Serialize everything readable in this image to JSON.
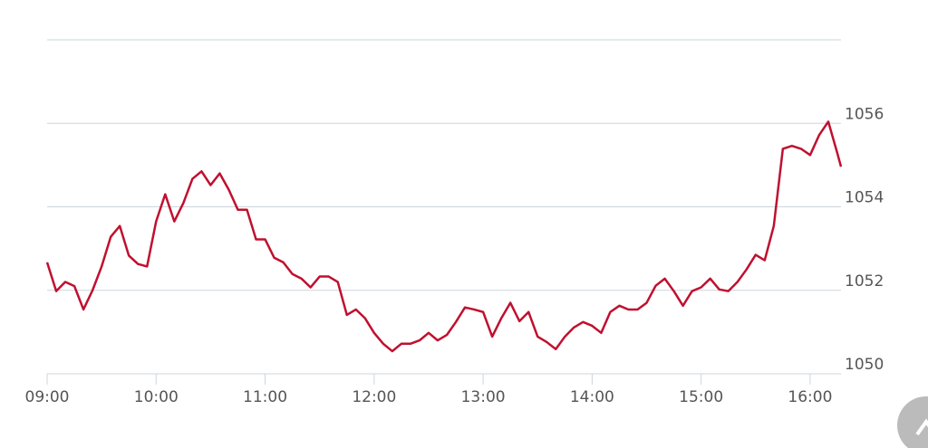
{
  "chart_data": {
    "type": "line",
    "x": [
      540,
      545,
      550,
      555,
      560,
      565,
      570,
      575,
      580,
      585,
      590,
      595,
      600,
      605,
      610,
      615,
      620,
      625,
      630,
      635,
      640,
      645,
      650,
      655,
      660,
      665,
      670,
      675,
      680,
      685,
      690,
      695,
      700,
      705,
      710,
      715,
      720,
      725,
      730,
      735,
      740,
      745,
      750,
      755,
      760,
      765,
      770,
      775,
      780,
      785,
      790,
      795,
      800,
      805,
      810,
      815,
      820,
      825,
      830,
      835,
      840,
      845,
      850,
      855,
      860,
      865,
      870,
      875,
      880,
      885,
      890,
      895,
      900,
      905,
      910,
      915,
      920,
      925,
      930,
      935,
      940,
      945,
      950,
      955,
      960,
      965,
      970,
      975,
      977
    ],
    "series": [
      {
        "name": null,
        "color": "#c0102f",
        "values": [
          1052.67,
          1051.98,
          1052.2,
          1052.1,
          1051.54,
          1052.0,
          1052.57,
          1053.28,
          1053.54,
          1052.83,
          1052.63,
          1052.57,
          1053.65,
          1054.3,
          1053.65,
          1054.09,
          1054.67,
          1054.85,
          1054.52,
          1054.8,
          1054.41,
          1053.93,
          1053.93,
          1053.22,
          1053.22,
          1052.78,
          1052.67,
          1052.39,
          1052.28,
          1052.07,
          1052.33,
          1052.33,
          1052.2,
          1051.41,
          1051.54,
          1051.33,
          1050.98,
          1050.72,
          1050.54,
          1050.72,
          1050.72,
          1050.8,
          1050.98,
          1050.8,
          1050.93,
          1051.24,
          1051.59,
          1051.54,
          1051.48,
          1050.89,
          1051.33,
          1051.7,
          1051.26,
          1051.48,
          1050.89,
          1050.76,
          1050.59,
          1050.89,
          1051.11,
          1051.24,
          1051.15,
          1050.98,
          1051.48,
          1051.63,
          1051.54,
          1051.54,
          1051.7,
          1052.11,
          1052.28,
          1051.98,
          1051.63,
          1051.98,
          1052.07,
          1052.28,
          1052.02,
          1051.98,
          1052.2,
          1052.5,
          1052.85,
          1052.72,
          1053.54,
          1055.39,
          1055.46,
          1055.39,
          1055.24,
          1055.72,
          1056.04,
          1055.28,
          1054.96
        ]
      }
    ],
    "xlim": [
      540,
      977
    ],
    "xticks": [
      {
        "value": 540,
        "label": "09:00"
      },
      {
        "value": 600,
        "label": "10:00"
      },
      {
        "value": 660,
        "label": "11:00"
      },
      {
        "value": 720,
        "label": "12:00"
      },
      {
        "value": 780,
        "label": "13:00"
      },
      {
        "value": 840,
        "label": "14:00"
      },
      {
        "value": 900,
        "label": "15:00"
      },
      {
        "value": 960,
        "label": "16:00"
      }
    ],
    "ylim": [
      1050,
      1058
    ],
    "yticks": [
      1050,
      1052,
      1054,
      1056
    ],
    "grid": true
  }
}
